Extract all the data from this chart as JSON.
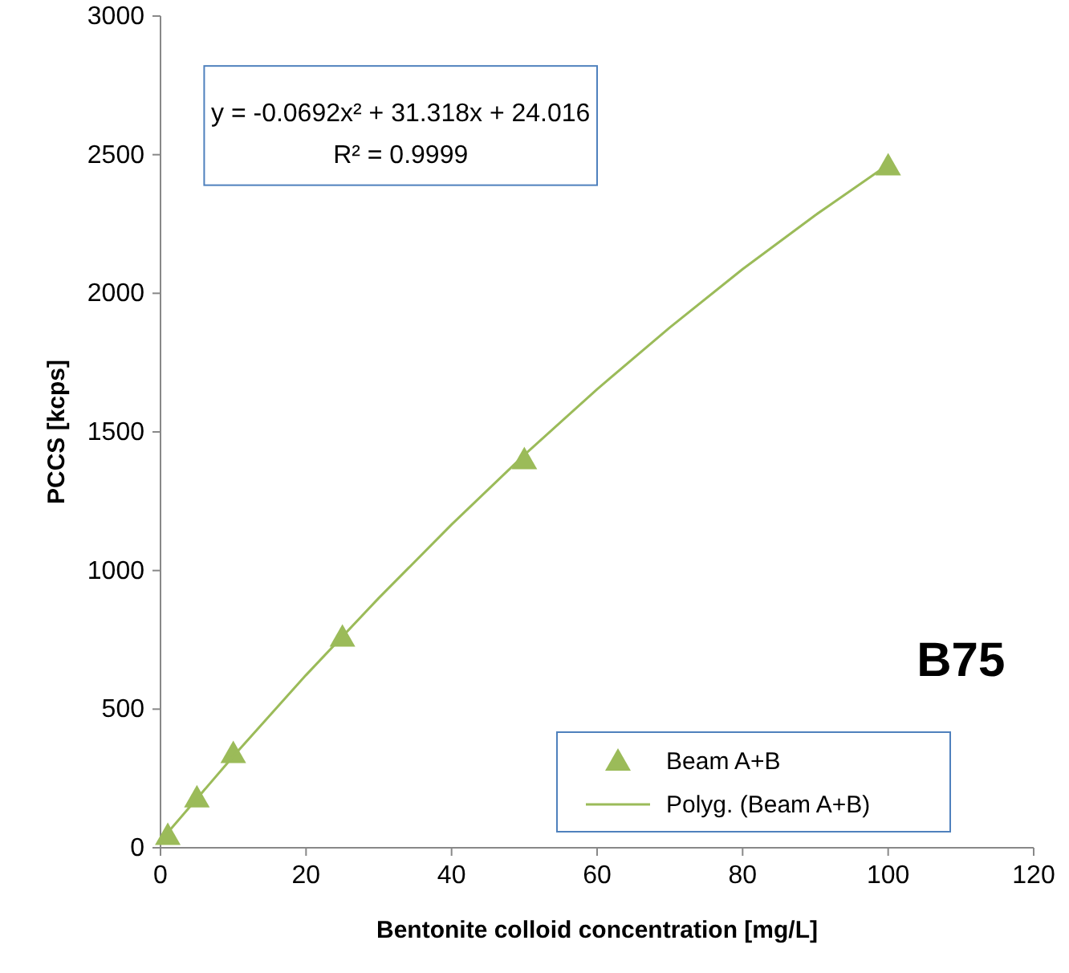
{
  "chart_data": {
    "type": "scatter",
    "xlabel": "Bentonite colloid concentration [mg/L]",
    "ylabel": "PCCS [kcps]",
    "xlim": [
      0,
      120
    ],
    "xticks": [
      0,
      20,
      40,
      60,
      80,
      100,
      120
    ],
    "ylim": [
      0,
      3000
    ],
    "yticks": [
      0,
      500,
      1000,
      1500,
      2000,
      2500,
      3000
    ],
    "grid": false,
    "legend": "bottom right",
    "annotations": [
      "y = -0.0692x² + 31.318x + 24.016",
      "R² = 0.9999",
      "B75"
    ],
    "series": [
      {
        "name": "Beam A+B",
        "marker": "triangle",
        "color": "#9bbb59",
        "x": [
          1,
          5,
          10,
          25,
          50,
          100
        ],
        "values": [
          45,
          180,
          340,
          760,
          1400,
          2460
        ]
      },
      {
        "name": "Polyg. (Beam A+B)",
        "type": "line",
        "marker": "none",
        "color": "#9bbb59",
        "x": [
          1,
          10,
          20,
          30,
          40,
          50,
          60,
          70,
          80,
          90,
          100
        ],
        "values": [
          55,
          330,
          623,
          901,
          1166,
          1417,
          1654,
          1877,
          2087,
          2282,
          2464
        ]
      }
    ]
  }
}
